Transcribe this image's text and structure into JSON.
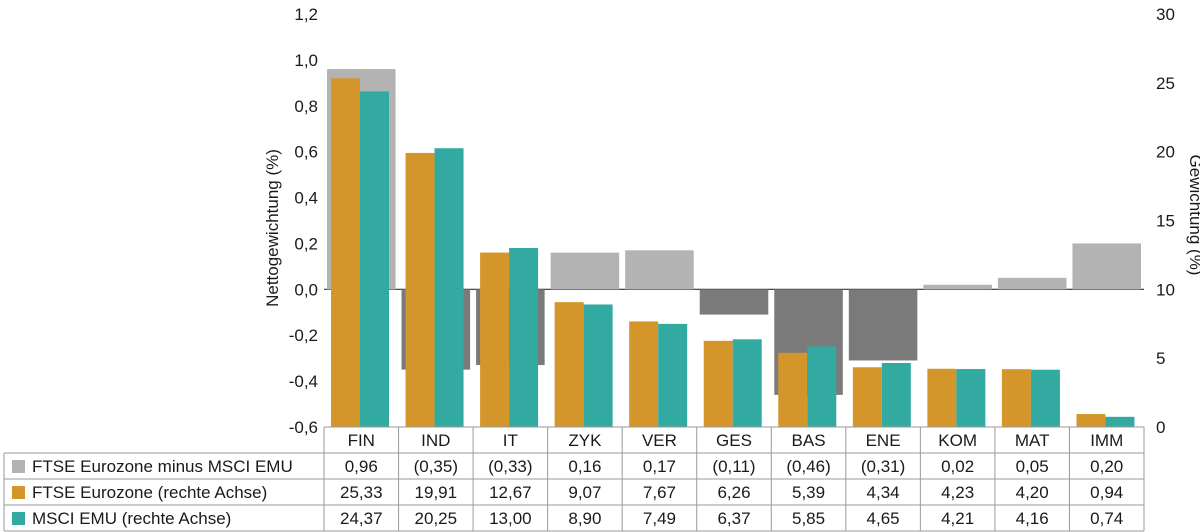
{
  "chart_data": {
    "type": "bar",
    "categories": [
      "FIN",
      "IND",
      "IT",
      "ZYK",
      "VER",
      "GES",
      "BAS",
      "ENE",
      "KOM",
      "MAT",
      "IMM"
    ],
    "series": [
      {
        "name": "FTSE Eurozone minus MSCI EMU",
        "axis": "left",
        "values": [
          0.96,
          -0.35,
          -0.33,
          0.16,
          0.17,
          -0.11,
          -0.46,
          -0.31,
          0.02,
          0.05,
          0.2
        ],
        "labels": [
          "0,96",
          "(0,35)",
          "(0,33)",
          "0,16",
          "0,17",
          "(0,11)",
          "(0,46)",
          "(0,31)",
          "0,02",
          "0,05",
          "0,20"
        ],
        "color_positive": "#b3b3b3",
        "color_negative": "#7a7a7a"
      },
      {
        "name": "FTSE Eurozone (rechte Achse)",
        "axis": "right",
        "values": [
          25.33,
          19.91,
          12.67,
          9.07,
          7.67,
          6.26,
          5.39,
          4.34,
          4.23,
          4.2,
          0.94
        ],
        "labels": [
          "25,33",
          "19,91",
          "12,67",
          "9,07",
          "7,67",
          "6,26",
          "5,39",
          "4,34",
          "4,23",
          "4,20",
          "0,94"
        ],
        "color": "#d4962b"
      },
      {
        "name": "MSCI EMU (rechte Achse)",
        "axis": "right",
        "values": [
          24.37,
          20.25,
          13.0,
          8.9,
          7.49,
          6.37,
          5.85,
          4.65,
          4.21,
          4.16,
          0.74
        ],
        "labels": [
          "24,37",
          "20,25",
          "13,00",
          "8,90",
          "7,49",
          "6,37",
          "5,85",
          "4,65",
          "4,21",
          "4,16",
          "0,74"
        ],
        "color": "#32a9a1"
      }
    ],
    "ylabel": "Nettogewichtung (%)",
    "y2label": "Gewichtung (%)",
    "ylim": [
      -0.6,
      1.2
    ],
    "y2lim": [
      0,
      30
    ],
    "yticks": [
      "-0,6",
      "-0,4",
      "-0,2",
      "0,0",
      "0,2",
      "0,4",
      "0,6",
      "0,8",
      "1,0",
      "1,2"
    ],
    "y2ticks": [
      "0",
      "5",
      "10",
      "15",
      "20",
      "25",
      "30"
    ],
    "legend": "table-below"
  }
}
